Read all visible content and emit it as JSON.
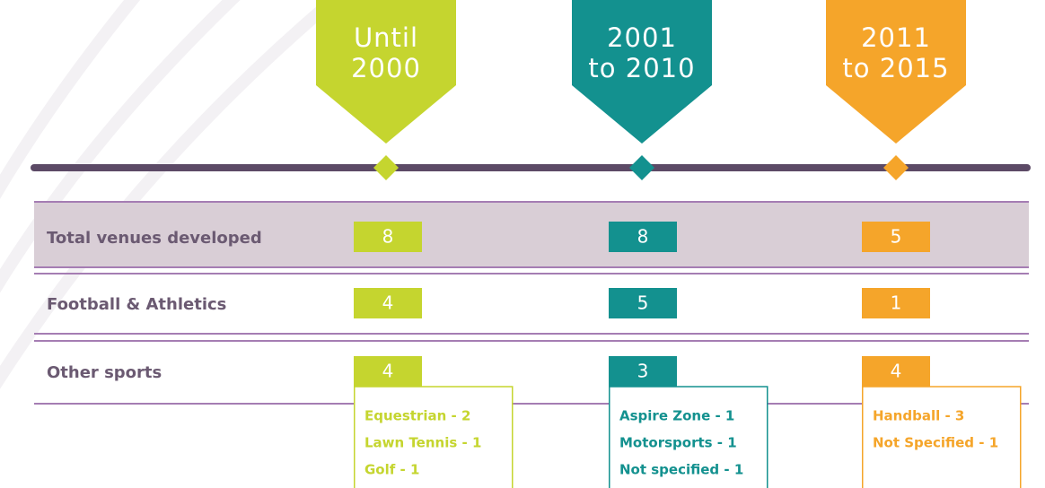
{
  "periods": [
    {
      "label": [
        "Until",
        "2000"
      ],
      "color": "#c5d52f"
    },
    {
      "label": [
        "2001",
        "to 2010"
      ],
      "color": "#13918f"
    },
    {
      "label": [
        "2011",
        "to 2015"
      ],
      "color": "#f5a52a"
    }
  ],
  "rows": [
    {
      "label": "Total venues developed",
      "values": [
        8,
        8,
        5
      ]
    },
    {
      "label": "Football & Athletics",
      "values": [
        4,
        5,
        1
      ]
    },
    {
      "label": "Other sports",
      "values": [
        4,
        3,
        4
      ]
    }
  ],
  "details": [
    [
      "Equestrian - 2",
      "Lawn Tennis - 1",
      "Golf - 1"
    ],
    [
      "Aspire Zone - 1",
      "Motorsports - 1",
      "Not specified - 1"
    ],
    [
      "Handball - 3",
      "Not Specified - 1"
    ]
  ]
}
